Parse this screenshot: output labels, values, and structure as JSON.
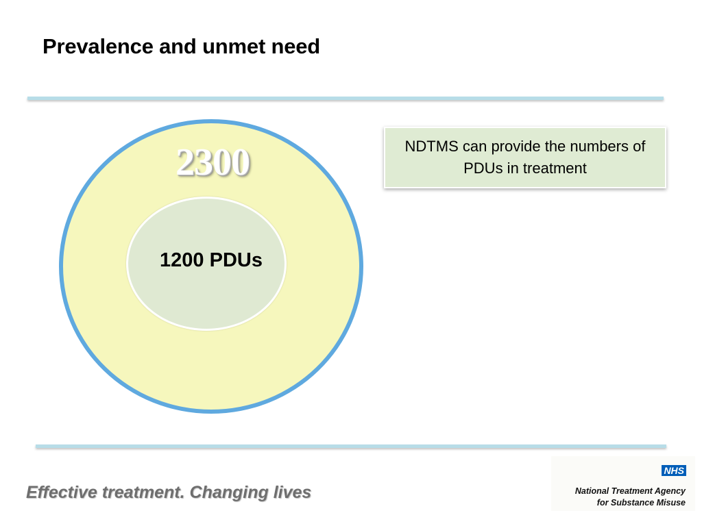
{
  "slide": {
    "title": "Prevalence and unmet need"
  },
  "diagram": {
    "outer_value": "2300",
    "inner_value": "1200 PDUs",
    "note": "NDTMS can provide the numbers of PDUs in treatment"
  },
  "footer": {
    "tagline": "Effective treatment. Changing lives",
    "nhs_badge": "NHS",
    "agency_line1": "National Treatment Agency",
    "agency_line2": "for Substance Misuse"
  },
  "colors": {
    "outer_fill": "#f6f7bd",
    "outer_border": "#5fa9df",
    "inner_fill": "#dfe9d2",
    "note_fill": "#dfebd3",
    "rule": "#b7dde8",
    "nhs_blue": "#005eb8"
  }
}
